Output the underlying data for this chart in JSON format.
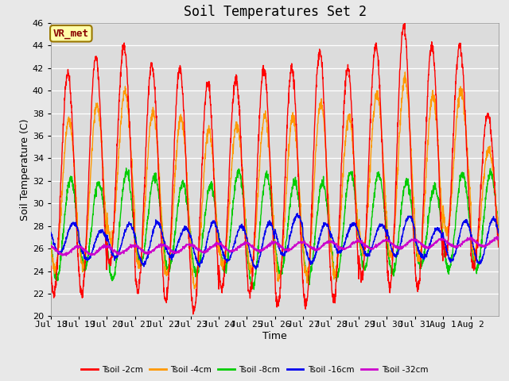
{
  "title": "Soil Temperatures Set 2",
  "xlabel": "Time",
  "ylabel": "Soil Temperature (C)",
  "ylim": [
    20,
    46
  ],
  "yticks": [
    20,
    22,
    24,
    26,
    28,
    30,
    32,
    34,
    36,
    38,
    40,
    42,
    44,
    46
  ],
  "fig_bg": "#e8e8e8",
  "plot_bg": "#dcdcdc",
  "series": [
    {
      "label": "Tsoil -2cm",
      "color": "#ff0000"
    },
    {
      "label": "Tsoil -4cm",
      "color": "#ff9900"
    },
    {
      "label": "Tsoil -8cm",
      "color": "#00cc00"
    },
    {
      "label": "Tsoil -16cm",
      "color": "#0000ee"
    },
    {
      "label": "Tsoil -32cm",
      "color": "#cc00cc"
    }
  ],
  "annotation_text": "VR_met",
  "annotation_color": "#880000",
  "annotation_bg": "#ffffaa",
  "annotation_border": "#997700",
  "n_days": 16,
  "pts_per_day": 144,
  "day_labels": [
    "Jul 18",
    "Jul 19",
    "Jul 20",
    "Jul 21",
    "Jul 22",
    "Jul 23",
    "Jul 24",
    "Jul 25",
    "Jul 26",
    "Jul 27",
    "Jul 28",
    "Jul 29",
    "Jul 30",
    "Jul 31",
    "Aug 1",
    "Aug 2"
  ]
}
